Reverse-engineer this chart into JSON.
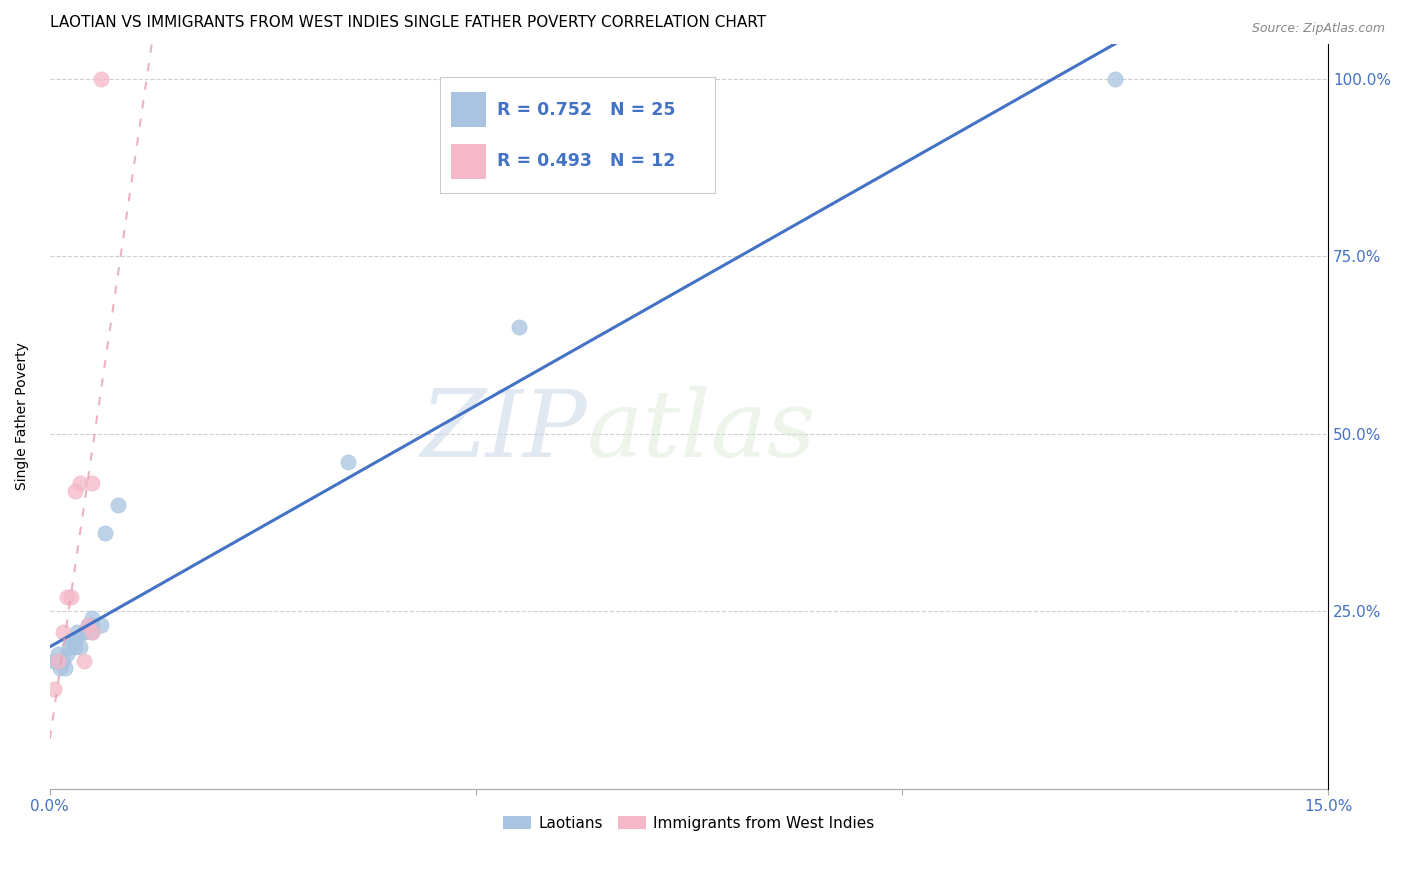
{
  "title": "LAOTIAN VS IMMIGRANTS FROM WEST INDIES SINGLE FATHER POVERTY CORRELATION CHART",
  "source": "Source: ZipAtlas.com",
  "ylabel": "Single Father Poverty",
  "xlim": [
    0.0,
    0.15
  ],
  "ylim": [
    0.0,
    1.05
  ],
  "laotian_x": [
    0.0005,
    0.0008,
    0.001,
    0.0012,
    0.0015,
    0.0018,
    0.002,
    0.0022,
    0.0025,
    0.003,
    0.003,
    0.0032,
    0.0035,
    0.004,
    0.004,
    0.0045,
    0.005,
    0.005,
    0.005,
    0.006,
    0.0065,
    0.008,
    0.035,
    0.055,
    0.125
  ],
  "laotian_y": [
    0.18,
    0.18,
    0.19,
    0.17,
    0.18,
    0.17,
    0.19,
    0.2,
    0.21,
    0.2,
    0.21,
    0.22,
    0.2,
    0.22,
    0.22,
    0.23,
    0.23,
    0.24,
    0.22,
    0.23,
    0.36,
    0.4,
    0.46,
    0.65,
    1.0
  ],
  "west_indies_x": [
    0.0005,
    0.001,
    0.0015,
    0.002,
    0.0025,
    0.003,
    0.0035,
    0.004,
    0.0045,
    0.005,
    0.005,
    0.006
  ],
  "west_indies_y": [
    0.14,
    0.18,
    0.22,
    0.27,
    0.27,
    0.42,
    0.43,
    0.18,
    0.23,
    0.22,
    0.43,
    1.0
  ],
  "laotian_R": 0.752,
  "laotian_N": 25,
  "west_indies_R": 0.493,
  "west_indies_N": 12,
  "laotian_color": "#a8c4e0",
  "laotian_line_color": "#4472c4",
  "west_indies_color": "#f4b8c8",
  "west_indies_line_color": "#e8a0b0",
  "watermark_zip": "ZIP",
  "watermark_atlas": "atlas",
  "title_fontsize": 11,
  "axis_label_fontsize": 10,
  "tick_fontsize": 11,
  "legend_R_color": "#4472c4",
  "legend_N_color": "#4472c4"
}
